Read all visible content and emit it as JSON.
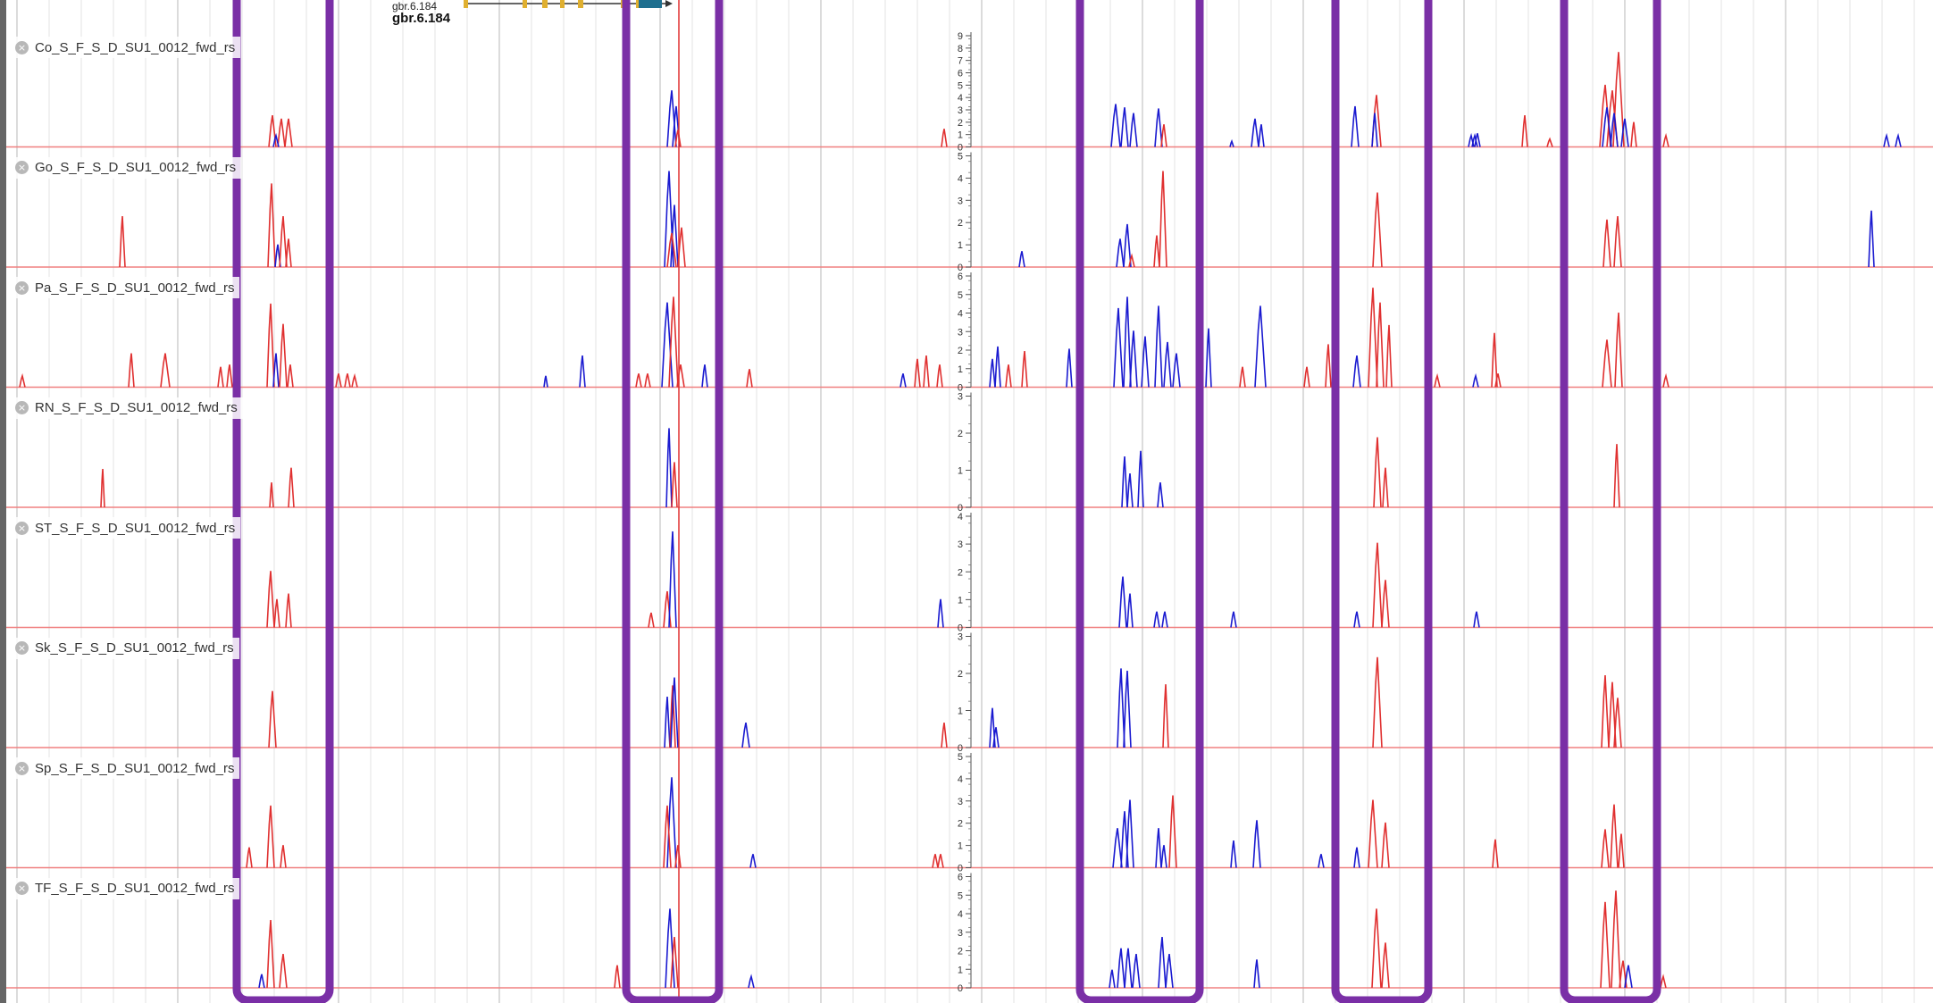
{
  "gene": {
    "name_small": "gbr.6.184",
    "name_bold": "gbr.6.184"
  },
  "tracks": [
    {
      "label": "Co_S_F_S_D_SU1_0012_fwd_rs",
      "ymax": 9
    },
    {
      "label": "Go_S_F_S_D_SU1_0012_fwd_rs",
      "ymax": 5
    },
    {
      "label": "Pa_S_F_S_D_SU1_0012_fwd_rs",
      "ymax": 6
    },
    {
      "label": "RN_S_F_S_D_SU1_0012_fwd_rs",
      "ymax": 3
    },
    {
      "label": "ST_S_F_S_D_SU1_0012_fwd_rs",
      "ymax": 4
    },
    {
      "label": "Sk_S_F_S_D_SU1_0012_fwd_rs",
      "ymax": 3
    },
    {
      "label": "Sp_S_F_S_D_SU1_0012_fwd_rs",
      "ymax": 5
    },
    {
      "label": "TF_S_F_S_D_SU1_0012_fwd_rs",
      "ymax": 6
    }
  ],
  "colors": {
    "forward": "#e03030",
    "reverse": "#1a1ad0",
    "highlight": "#7a2fa6",
    "baseline": "#f08080",
    "grid": "#dcdcdc"
  }
}
